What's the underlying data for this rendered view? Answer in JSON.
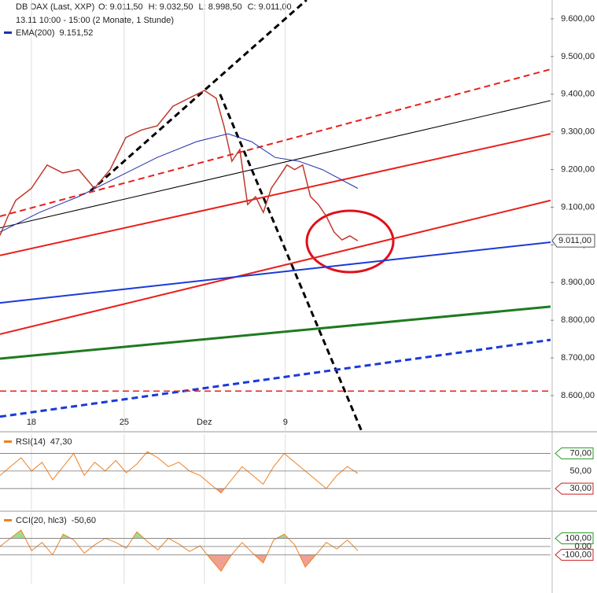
{
  "chart_data": [
    {
      "type": "line",
      "title": "DB DAX (Last, XXP)",
      "ohlc_labels": [
        "O: 9.011,50",
        "H: 9.032,50",
        "L: 8.998,50",
        "C: 9.011,00"
      ],
      "subtitle": "13.11 10:00 - 15:00 (2 Monate, 1 Stunde)",
      "xlim": [
        0,
        34
      ],
      "xticks": [
        {
          "value": 1.94,
          "label": "18"
        },
        {
          "value": 7.67,
          "label": "25"
        },
        {
          "value": 12.62,
          "label": "Dez"
        },
        {
          "value": 17.62,
          "label": "9"
        }
      ],
      "ylim": [
        8506,
        9650
      ],
      "yticks": [
        {
          "value": 8600,
          "label": "8.600,00"
        },
        {
          "value": 8700,
          "label": "8.700,00"
        },
        {
          "value": 8800,
          "label": "8.800,00"
        },
        {
          "value": 8900,
          "label": "8.900,00"
        },
        {
          "value": 9000,
          "label": "9.000,00"
        },
        {
          "value": 9100,
          "label": "9.100,00"
        },
        {
          "value": 9200,
          "label": "9.200,00"
        },
        {
          "value": 9300,
          "label": "9.300,00"
        },
        {
          "value": 9400,
          "label": "9.400,00"
        },
        {
          "value": 9500,
          "label": "9.500,00"
        },
        {
          "value": 9600,
          "label": "9.600,00"
        }
      ],
      "last_price": {
        "value": 9011,
        "label": "9.011,00"
      },
      "series": [
        {
          "name": "DB DAX (Last, XXP)",
          "color": "#c0392b",
          "x": [
            0,
            0.49,
            0.97,
            1.94,
            2.91,
            3.88,
            4.85,
            5.83,
            6.8,
            7.77,
            8.74,
            9.71,
            10.68,
            11.65,
            12.62,
            13.35,
            13.83,
            14.32,
            14.81,
            15.29,
            15.78,
            16.26,
            16.75,
            17.23,
            17.72,
            18.2,
            18.69,
            19.17,
            19.66,
            20.15,
            20.63,
            21.12,
            21.6,
            22.09
          ],
          "values": [
            9025,
            9076,
            9118,
            9150,
            9212,
            9191,
            9200,
            9150,
            9200,
            9285,
            9305,
            9316,
            9368,
            9389,
            9410,
            9389,
            9316,
            9222,
            9253,
            9107,
            9128,
            9086,
            9150,
            9180,
            9212,
            9200,
            9212,
            9128,
            9107,
            9076,
            9034,
            9013,
            9024,
            9011
          ]
        },
        {
          "name": "EMA(200)",
          "value_label": "9.151,52",
          "color": "#1f2fa8",
          "x": [
            0,
            2.43,
            4.85,
            7.28,
            9.71,
            12.14,
            14.08,
            15.53,
            16.99,
            18.45,
            19.9,
            22.09
          ],
          "values": [
            9034,
            9086,
            9128,
            9180,
            9232,
            9274,
            9295,
            9274,
            9232,
            9222,
            9200,
            9150
          ]
        }
      ],
      "trend_lines": [
        {
          "color": "#000000",
          "dash": true,
          "width": 3,
          "x": [
            5.58,
            18.93
          ],
          "values": [
            9143,
            9650
          ]
        },
        {
          "color": "#000000",
          "dash": true,
          "width": 3,
          "x": [
            13.59,
            22.33
          ],
          "values": [
            9400,
            8506
          ]
        },
        {
          "color": "#e8201c",
          "dash": true,
          "width": 2,
          "x": [
            0,
            34
          ],
          "values": [
            9076,
            9466
          ]
        },
        {
          "color": "#000000",
          "dash": false,
          "width": 1,
          "x": [
            0,
            34
          ],
          "values": [
            9045,
            9383
          ]
        },
        {
          "color": "#e8201c",
          "dash": false,
          "width": 2,
          "x": [
            0,
            34
          ],
          "values": [
            8972,
            9295
          ]
        },
        {
          "color": "#e8201c",
          "dash": false,
          "width": 2,
          "x": [
            0,
            34
          ],
          "values": [
            8763,
            9118
          ]
        },
        {
          "color": "#1a3ad8",
          "dash": false,
          "width": 2,
          "x": [
            0,
            34
          ],
          "values": [
            8846,
            9007
          ]
        },
        {
          "color": "#1f7a1f",
          "dash": false,
          "width": 3,
          "x": [
            0,
            34
          ],
          "values": [
            8698,
            8836
          ]
        },
        {
          "color": "#1a3ad8",
          "dash": true,
          "width": 3,
          "x": [
            0,
            34
          ],
          "values": [
            8544,
            8748
          ]
        },
        {
          "color": "#e8201c",
          "dash": true,
          "width": 1.5,
          "x": [
            0,
            34
          ],
          "values": [
            8612,
            8612
          ]
        }
      ]
    },
    {
      "type": "line",
      "xlim": [
        0,
        34
      ],
      "ylim": [
        6,
        92
      ],
      "levels": [
        {
          "value": 70,
          "label": "70,00"
        },
        {
          "value": 50,
          "label": "50,00"
        },
        {
          "value": 30,
          "label": "30,00"
        }
      ],
      "upper": 70,
      "lower": 30,
      "series": [
        {
          "name": "RSI(14)",
          "value_label": "47,30",
          "color": "#f08020",
          "x": [
            0,
            0.65,
            1.3,
            1.95,
            2.6,
            3.25,
            3.9,
            4.55,
            5.2,
            5.85,
            6.5,
            7.15,
            7.8,
            8.45,
            9.1,
            9.75,
            10.4,
            11.05,
            11.7,
            12.35,
            13.0,
            13.65,
            14.3,
            14.95,
            15.6,
            16.25,
            16.9,
            17.55,
            18.2,
            18.85,
            19.5,
            20.15,
            20.8,
            21.45,
            22.1
          ],
          "values": [
            45,
            55,
            65,
            50,
            60,
            40,
            55,
            70,
            45,
            60,
            50,
            62,
            48,
            58,
            72,
            65,
            55,
            60,
            50,
            45,
            35,
            25,
            40,
            55,
            45,
            35,
            55,
            70,
            60,
            50,
            40,
            30,
            45,
            55,
            47.3
          ]
        }
      ]
    },
    {
      "type": "line",
      "xlim": [
        0,
        34
      ],
      "ylim": [
        -450,
        410
      ],
      "levels": [
        {
          "value": 100,
          "label": "100,00"
        },
        {
          "value": 0,
          "label": "0,00"
        },
        {
          "value": -100,
          "label": "-100,00"
        }
      ],
      "upper": 100,
      "lower": -100,
      "series": [
        {
          "name": "CCI(20, hlc3)",
          "value_label": "-50,60",
          "color": "#f08020",
          "x": [
            0,
            0.65,
            1.3,
            1.95,
            2.6,
            3.25,
            3.9,
            4.55,
            5.2,
            5.85,
            6.5,
            7.15,
            7.8,
            8.45,
            9.1,
            9.75,
            10.4,
            11.05,
            11.7,
            12.35,
            13.0,
            13.65,
            14.3,
            14.95,
            15.6,
            16.25,
            16.9,
            17.55,
            18.2,
            18.85,
            19.5,
            20.15,
            20.8,
            21.45,
            22.1
          ],
          "values": [
            0,
            100,
            200,
            -50,
            50,
            -100,
            150,
            80,
            -80,
            20,
            100,
            50,
            -20,
            180,
            60,
            -40,
            100,
            30,
            -60,
            10,
            -150,
            -300,
            -100,
            50,
            -80,
            -200,
            80,
            150,
            20,
            -250,
            -100,
            50,
            -30,
            80,
            -50.6
          ]
        }
      ]
    }
  ]
}
